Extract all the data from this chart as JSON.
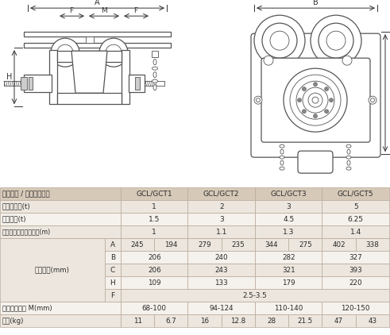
{
  "col_headers": [
    "GCL/GCT1",
    "GCL/GCT2",
    "GCL/GCT3",
    "GCL/GCT5"
  ],
  "row_label1": "单轨行车 / 手推单轨行车",
  "row_label2": "额定载重量(t)",
  "row_label3": "试验载荷(t)",
  "row_label4": "能通过的最小弯道半径(m)",
  "row_label5": "主要尺寸(mm)",
  "row_label6": "推荐用工字锂 M(mm)",
  "row_label7": "净重(kg)",
  "vals_rated": [
    "1",
    "2",
    "3",
    "5"
  ],
  "vals_test": [
    "1.5",
    "3",
    "4.5",
    "6.25"
  ],
  "vals_radius": [
    "1",
    "1.1",
    "1.3",
    "1.4"
  ],
  "vals_A": [
    "245",
    "194",
    "279",
    "235",
    "344",
    "275",
    "402",
    "338"
  ],
  "vals_B": [
    "206",
    "240",
    "282",
    "327"
  ],
  "vals_C": [
    "206",
    "243",
    "321",
    "393"
  ],
  "vals_H": [
    "109",
    "133",
    "179",
    "220"
  ],
  "vals_F": "2.5-3.5",
  "vals_beam": [
    "68-100",
    "94-124",
    "110-140",
    "120-150"
  ],
  "vals_weight": [
    "11",
    "6.7",
    "16",
    "12.8",
    "28",
    "21.5",
    "47",
    "43"
  ],
  "bg_header": "#d6c9b8",
  "bg_odd": "#ece6de",
  "bg_even": "#f5f1ec",
  "border_col": "#b8a898",
  "text_col": "#2a2a2a"
}
